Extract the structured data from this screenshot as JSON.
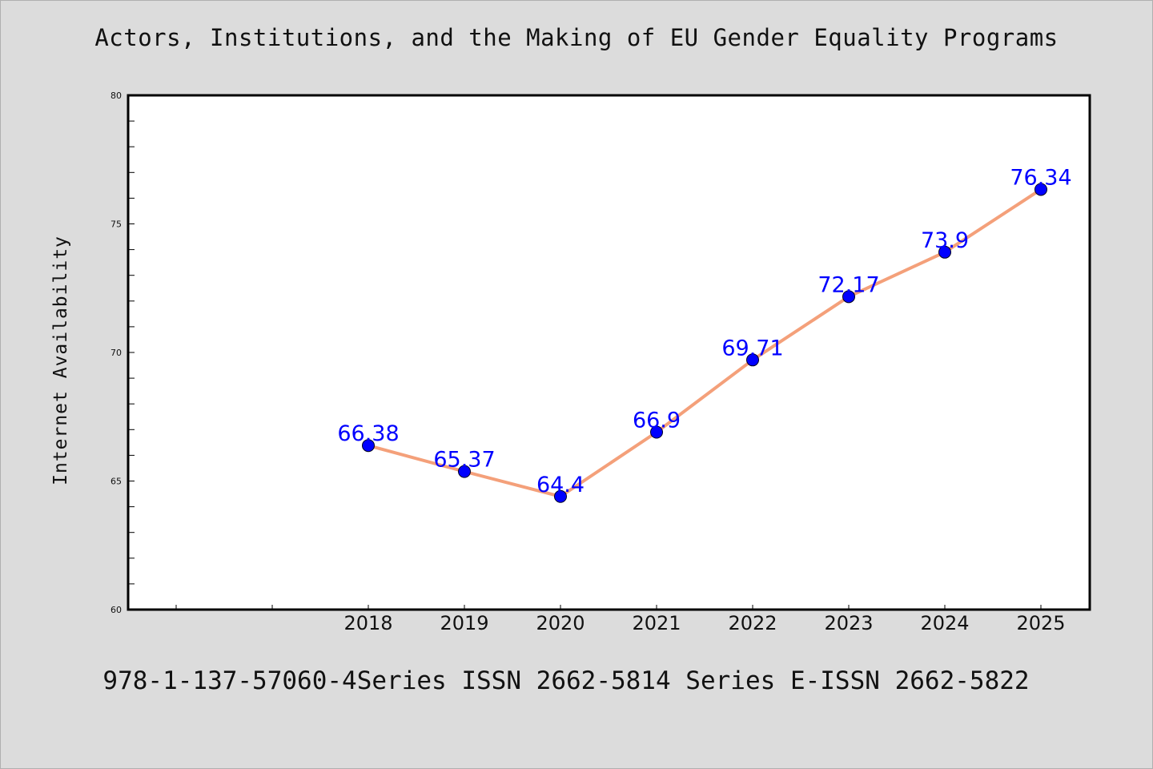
{
  "title": "Actors, Institutions, and the Making of EU Gender Equality Programs",
  "footer": "978-1-137-57060-4Series ISSN 2662-5814 Series E-ISSN 2662-5822",
  "colors": {
    "background": "#dcdcdc",
    "plot_background": "#ffffff",
    "line": "#f4a07a",
    "marker": "#0000ff",
    "data_label": "#0000ff"
  },
  "chart_data": {
    "type": "line",
    "title": "Actors, Institutions, and the Making of EU Gender Equality Programs",
    "xlabel": "",
    "ylabel": "Internet Availability",
    "categories": [
      "2018",
      "2019",
      "2020",
      "2021",
      "2022",
      "2023",
      "2024",
      "2025"
    ],
    "series": [
      {
        "values": [
          66.38,
          65.37,
          64.4,
          66.9,
          69.71,
          72.17,
          73.9,
          76.34
        ],
        "labels": [
          "66.38",
          "65.37",
          "64.4",
          "66.9",
          "69.71",
          "72.17",
          "73.9",
          "76.34"
        ]
      }
    ],
    "ylim": [
      60,
      80
    ],
    "yticks": [
      60,
      65,
      70,
      75,
      80
    ],
    "grid": false,
    "legend": "none"
  }
}
